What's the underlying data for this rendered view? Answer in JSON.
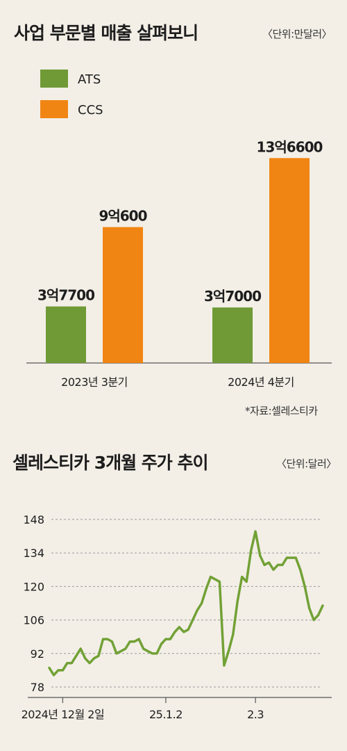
{
  "colors": {
    "ats": "#6f9a36",
    "ccs": "#f18513",
    "line": "#72a136",
    "text": "#1d1d1d",
    "grid": "#9a9a9a"
  },
  "chart_data": [
    {
      "type": "bar",
      "title": "사업 부문별 매출 살펴보니",
      "unit": "〈단위:만달러〉",
      "source": "*자료:셀레스티카",
      "categories": [
        "2023년 3분기",
        "2024년 4분기"
      ],
      "series": [
        {
          "name": "ATS",
          "values": [
            37700,
            37000
          ],
          "labels": [
            "3억7700",
            "3억7000"
          ]
        },
        {
          "name": "CCS",
          "values": [
            90600,
            136600
          ],
          "labels": [
            "9억600",
            "13억6600"
          ]
        }
      ],
      "legend_position": "top-left",
      "ylim": [
        0,
        140000
      ],
      "grid": false
    },
    {
      "type": "line",
      "title": "셀레스티카 3개월 주가 추이",
      "unit": "〈단위:달러〉",
      "x_tick_labels": [
        "2024년 12월 2일",
        "25.1.2",
        "2.3"
      ],
      "x_tick_indices": [
        3,
        26,
        46
      ],
      "y_ticks": [
        148,
        134,
        120,
        106,
        92,
        78
      ],
      "ylim": [
        78,
        148
      ],
      "grid": true,
      "values": [
        86,
        83,
        85,
        85,
        88,
        88,
        91,
        94,
        90,
        88,
        90,
        91,
        98,
        98,
        97,
        92,
        93,
        94,
        97,
        97,
        98,
        94,
        93,
        92,
        92,
        96,
        98,
        98,
        101,
        103,
        101,
        102,
        106,
        110,
        113,
        119,
        124,
        123,
        122,
        87,
        93,
        100,
        114,
        124,
        122,
        135,
        143,
        133,
        129,
        130,
        127,
        129,
        129,
        132,
        132,
        132,
        127,
        120,
        111,
        106,
        108,
        112
      ]
    }
  ]
}
